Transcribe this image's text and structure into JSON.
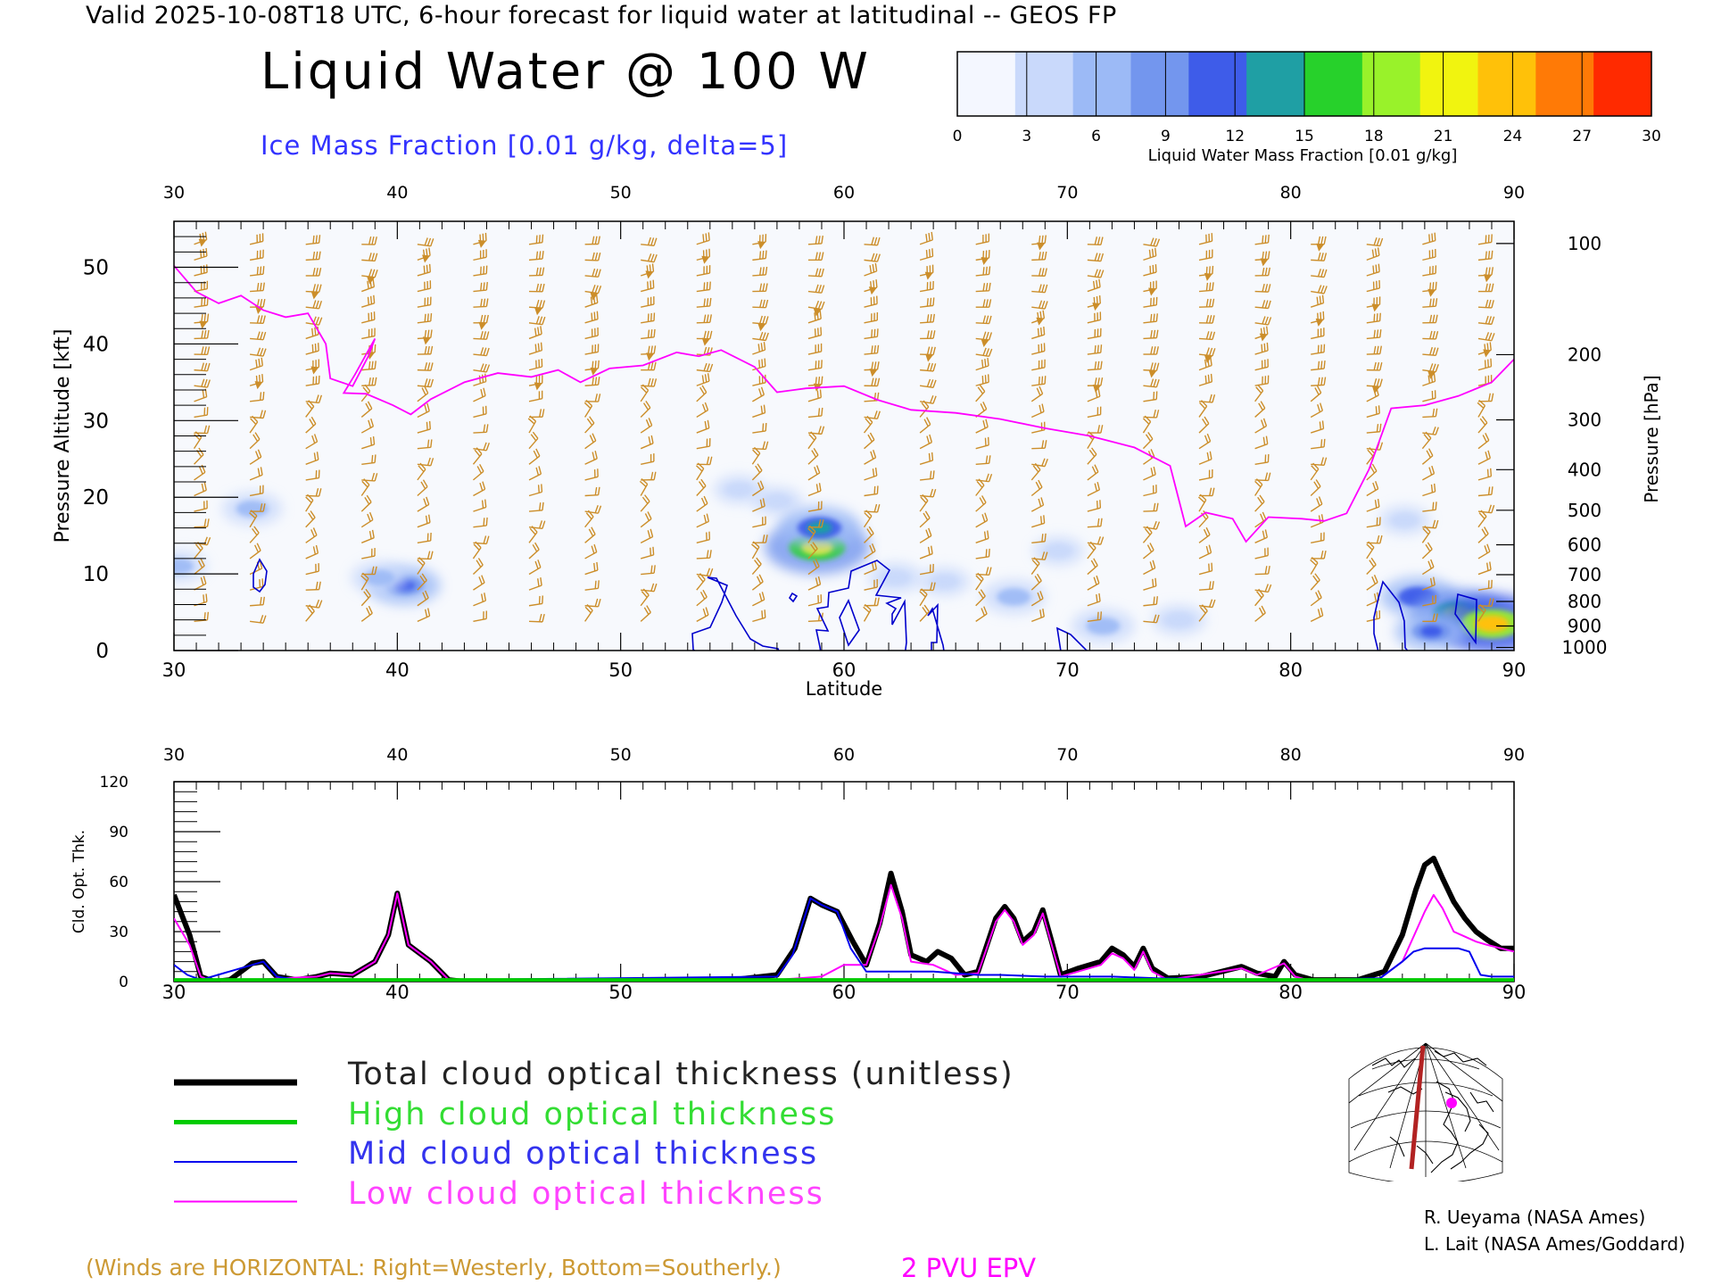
{
  "header": {
    "line": "Valid 2025-10-08T18 UTC, 6-hour forecast for liquid water at latitudinal -- GEOS FP",
    "title": "Liquid Water @ 100 W",
    "subtitle": "Ice Mass Fraction [0.01 g/kg, delta=5]"
  },
  "colorbar": {
    "label": "Liquid Water Mass Fraction [0.01 g/kg]",
    "ticks": [
      "0",
      "3",
      "6",
      "9",
      "12",
      "15",
      "18",
      "21",
      "24",
      "27",
      "30"
    ],
    "colors": [
      "#f4f7ff",
      "#c9d9fb",
      "#9cbaf6",
      "#7396ee",
      "#3e5ce9",
      "#1f9fa4",
      "#27d12b",
      "#99f22a",
      "#f1f40f",
      "#ffc109",
      "#ff7a06",
      "#ff2a00"
    ]
  },
  "chart_data": [
    {
      "type": "heatmap",
      "xlabel": "Latitude",
      "ylabel_left": "Pressure Altitude [kft]",
      "ylabel_right": "Pressure [hPa]",
      "xlim": [
        30,
        90
      ],
      "ylim": [
        0,
        56
      ],
      "x_ticks": [
        "30",
        "40",
        "50",
        "60",
        "70",
        "80",
        "90"
      ],
      "y_ticks": [
        "0",
        "10",
        "20",
        "30",
        "40",
        "50"
      ],
      "pressure_ticks": [
        {
          "label": "100",
          "kft": 53.1
        },
        {
          "label": "200",
          "kft": 38.6
        },
        {
          "label": "300",
          "kft": 30.1
        },
        {
          "label": "400",
          "kft": 23.6
        },
        {
          "label": "500",
          "kft": 18.3
        },
        {
          "label": "600",
          "kft": 13.8
        },
        {
          "label": "700",
          "kft": 9.9
        },
        {
          "label": "800",
          "kft": 6.4
        },
        {
          "label": "900",
          "kft": 3.2
        },
        {
          "label": "1000",
          "kft": 0.4
        }
      ],
      "liquid_water_blobs": [
        {
          "lat": 30.2,
          "kft": 11,
          "value": 6
        },
        {
          "lat": 33.5,
          "kft": 18.5,
          "value": 7
        },
        {
          "lat": 40.3,
          "kft": 8.5,
          "value": 11
        },
        {
          "lat": 39.2,
          "kft": 9.5,
          "value": 6
        },
        {
          "lat": 55.3,
          "kft": 21,
          "value": 4
        },
        {
          "lat": 57,
          "kft": 19.5,
          "value": 4
        },
        {
          "lat": 58.8,
          "kft": 13.5,
          "value": 21
        },
        {
          "lat": 58.9,
          "kft": 16,
          "value": 14
        },
        {
          "lat": 62.3,
          "kft": 9.5,
          "value": 5
        },
        {
          "lat": 64.5,
          "kft": 9,
          "value": 4
        },
        {
          "lat": 67.6,
          "kft": 7,
          "value": 8
        },
        {
          "lat": 71.6,
          "kft": 3.2,
          "value": 8
        },
        {
          "lat": 69.6,
          "kft": 13,
          "value": 4
        },
        {
          "lat": 75,
          "kft": 4,
          "value": 5
        },
        {
          "lat": 85.1,
          "kft": 17,
          "value": 4
        },
        {
          "lat": 85.7,
          "kft": 7,
          "value": 12
        },
        {
          "lat": 87.5,
          "kft": 4.8,
          "value": 18
        },
        {
          "lat": 89,
          "kft": 3.5,
          "value": 24
        },
        {
          "lat": 86.3,
          "kft": 2.5,
          "value": 11
        }
      ],
      "tropopause_2pvu_kft": [
        [
          30,
          50.2
        ],
        [
          31,
          46.8
        ],
        [
          32,
          45.3
        ],
        [
          33,
          46.3
        ],
        [
          34,
          44.4
        ],
        [
          35,
          43.5
        ],
        [
          36,
          44.0
        ],
        [
          36.8,
          40
        ],
        [
          37,
          35.5
        ],
        [
          38,
          34.5
        ],
        [
          38.7,
          38.4
        ],
        [
          39,
          40.7
        ],
        [
          38.1,
          36
        ],
        [
          37.6,
          33.6
        ],
        [
          38.6,
          33.5
        ],
        [
          39.8,
          32.0
        ],
        [
          40.6,
          30.8
        ],
        [
          41.5,
          32.8
        ],
        [
          43,
          35
        ],
        [
          44.5,
          36.2
        ],
        [
          46,
          35.7
        ],
        [
          47.2,
          36.6
        ],
        [
          48.2,
          35.0
        ],
        [
          49.5,
          36.8
        ],
        [
          51,
          37.2
        ],
        [
          52.5,
          38.9
        ],
        [
          53.5,
          38.4
        ],
        [
          54.5,
          39.2
        ],
        [
          56,
          37
        ],
        [
          57,
          33.7
        ],
        [
          58.3,
          34.2
        ],
        [
          60,
          34.5
        ],
        [
          61.5,
          32.7
        ],
        [
          63,
          31.4
        ],
        [
          65,
          31.0
        ],
        [
          67,
          30.2
        ],
        [
          69,
          29.0
        ],
        [
          71,
          28.0
        ],
        [
          73,
          26.5
        ],
        [
          74.6,
          24.1
        ],
        [
          75.3,
          16.2
        ],
        [
          76.2,
          18.0
        ],
        [
          77.4,
          17.2
        ],
        [
          78,
          14.2
        ],
        [
          79,
          17.4
        ],
        [
          80.5,
          17.2
        ],
        [
          81.5,
          16.9
        ],
        [
          82.5,
          17.9
        ],
        [
          83.5,
          23.6
        ],
        [
          84.5,
          31.6
        ],
        [
          86,
          32.0
        ],
        [
          87.5,
          33.2
        ],
        [
          89,
          35.0
        ],
        [
          90,
          38.0
        ]
      ]
    },
    {
      "type": "line",
      "xlabel": "Latitude",
      "ylabel": "Cld. Opt. Thk.",
      "xlim": [
        30,
        90
      ],
      "ylim": [
        0,
        120
      ],
      "x_ticks": [
        "30",
        "40",
        "50",
        "60",
        "70",
        "80",
        "90"
      ],
      "y_ticks": [
        "0",
        "30",
        "60",
        "90",
        "120"
      ],
      "series": [
        {
          "name": "Total cloud optical thickness (unitless)",
          "color": "#000000",
          "width": 6,
          "points": [
            [
              30,
              52
            ],
            [
              30.7,
              28
            ],
            [
              31.2,
              3
            ],
            [
              31.8,
              0
            ],
            [
              32.5,
              1
            ],
            [
              33.5,
              11
            ],
            [
              34,
              12
            ],
            [
              34.6,
              3
            ],
            [
              35.5,
              1
            ],
            [
              36.4,
              3
            ],
            [
              37,
              5
            ],
            [
              38,
              4
            ],
            [
              39,
              12
            ],
            [
              39.6,
              28
            ],
            [
              40,
              53
            ],
            [
              40.5,
              22
            ],
            [
              41.5,
              12
            ],
            [
              42.3,
              1
            ],
            [
              43,
              0
            ],
            [
              52,
              0
            ],
            [
              55,
              1
            ],
            [
              57,
              4
            ],
            [
              57.8,
              20
            ],
            [
              58.5,
              50
            ],
            [
              59,
              46
            ],
            [
              59.7,
              42
            ],
            [
              60.4,
              24
            ],
            [
              61,
              10
            ],
            [
              61.6,
              35
            ],
            [
              62.1,
              65
            ],
            [
              62.6,
              42
            ],
            [
              63,
              16
            ],
            [
              63.7,
              12
            ],
            [
              64.2,
              18
            ],
            [
              64.8,
              14
            ],
            [
              65.4,
              4
            ],
            [
              66,
              6
            ],
            [
              66.8,
              38
            ],
            [
              67.2,
              45
            ],
            [
              67.6,
              38
            ],
            [
              68,
              24
            ],
            [
              68.5,
              30
            ],
            [
              68.9,
              43
            ],
            [
              69.3,
              24
            ],
            [
              69.7,
              4
            ],
            [
              70.5,
              8
            ],
            [
              71.5,
              12
            ],
            [
              72,
              20
            ],
            [
              72.5,
              16
            ],
            [
              73,
              9
            ],
            [
              73.4,
              20
            ],
            [
              73.8,
              8
            ],
            [
              74.5,
              2
            ],
            [
              76,
              3
            ],
            [
              77.8,
              9
            ],
            [
              78.5,
              5
            ],
            [
              79.3,
              3
            ],
            [
              79.7,
              12
            ],
            [
              80.2,
              4
            ],
            [
              81,
              1
            ],
            [
              83,
              1
            ],
            [
              84.2,
              6
            ],
            [
              85,
              28
            ],
            [
              85.6,
              55
            ],
            [
              86,
              70
            ],
            [
              86.4,
              74
            ],
            [
              86.8,
              62
            ],
            [
              87.3,
              48
            ],
            [
              87.8,
              38
            ],
            [
              88.3,
              30
            ],
            [
              88.8,
              25
            ],
            [
              89.4,
              20
            ],
            [
              90,
              20
            ]
          ]
        },
        {
          "name": "High cloud optical thickness",
          "color": "#00cc00",
          "width": 4,
          "points": [
            [
              30,
              1
            ],
            [
              60,
              1
            ],
            [
              90,
              1
            ]
          ]
        },
        {
          "name": "Mid cloud optical thickness",
          "color": "#0000ee",
          "width": 2,
          "points": [
            [
              30,
              10
            ],
            [
              30.6,
              4
            ],
            [
              31.2,
              1
            ],
            [
              33.5,
              10
            ],
            [
              34,
              12
            ],
            [
              34.6,
              3
            ],
            [
              35.5,
              1
            ],
            [
              42,
              1
            ],
            [
              57,
              3
            ],
            [
              57.7,
              16
            ],
            [
              58.5,
              50
            ],
            [
              59,
              46
            ],
            [
              59.7,
              42
            ],
            [
              60.3,
              20
            ],
            [
              61,
              6
            ],
            [
              62,
              6
            ],
            [
              64,
              6
            ],
            [
              66,
              4
            ],
            [
              67,
              4
            ],
            [
              69,
              3
            ],
            [
              70.5,
              3
            ],
            [
              72,
              3
            ],
            [
              74,
              2
            ],
            [
              80,
              1
            ],
            [
              84,
              2
            ],
            [
              85,
              12
            ],
            [
              85.5,
              18
            ],
            [
              86,
              20
            ],
            [
              87,
              20
            ],
            [
              87.5,
              20
            ],
            [
              88,
              18
            ],
            [
              88.5,
              4
            ],
            [
              89,
              3
            ],
            [
              90,
              3
            ]
          ]
        },
        {
          "name": "Low cloud optical thickness",
          "color": "#ff00ff",
          "width": 2,
          "points": [
            [
              30,
              38
            ],
            [
              30.7,
              22
            ],
            [
              31.2,
              3
            ],
            [
              31.8,
              0
            ],
            [
              36.4,
              3
            ],
            [
              37,
              5
            ],
            [
              38,
              4
            ],
            [
              39,
              12
            ],
            [
              39.6,
              28
            ],
            [
              40,
              53
            ],
            [
              40.5,
              22
            ],
            [
              41.5,
              12
            ],
            [
              42.3,
              1
            ],
            [
              52,
              0
            ],
            [
              57,
              1
            ],
            [
              59,
              3
            ],
            [
              60,
              10
            ],
            [
              61,
              10
            ],
            [
              61.6,
              33
            ],
            [
              62.1,
              58
            ],
            [
              62.6,
              38
            ],
            [
              63,
              12
            ],
            [
              64,
              10
            ],
            [
              65,
              4
            ],
            [
              66,
              5
            ],
            [
              66.8,
              36
            ],
            [
              67.2,
              43
            ],
            [
              67.6,
              36
            ],
            [
              68,
              22
            ],
            [
              68.5,
              28
            ],
            [
              68.9,
              41
            ],
            [
              69.3,
              22
            ],
            [
              69.7,
              3
            ],
            [
              71.5,
              10
            ],
            [
              72,
              17
            ],
            [
              72.5,
              14
            ],
            [
              73,
              7
            ],
            [
              73.4,
              18
            ],
            [
              73.8,
              6
            ],
            [
              74.5,
              1
            ],
            [
              77.8,
              8
            ],
            [
              78.5,
              4
            ],
            [
              79.7,
              11
            ],
            [
              80.2,
              3
            ],
            [
              81,
              0
            ],
            [
              84,
              2
            ],
            [
              85,
              12
            ],
            [
              85.6,
              30
            ],
            [
              86,
              42
            ],
            [
              86.4,
              52
            ],
            [
              86.8,
              44
            ],
            [
              87.3,
              30
            ],
            [
              87.8,
              27
            ],
            [
              88.3,
              24
            ],
            [
              88.8,
              22
            ],
            [
              89.4,
              20
            ],
            [
              90,
              18
            ]
          ]
        }
      ]
    }
  ],
  "legend": {
    "items": [
      {
        "label": "Total cloud optical thickness (unitless)",
        "color": "#000000",
        "width": 7
      },
      {
        "label": "High cloud optical thickness",
        "color": "#00cc00",
        "width": 5
      },
      {
        "label": "Mid cloud optical thickness",
        "color": "#0000ee",
        "width": 2
      },
      {
        "label": "Low cloud optical thickness",
        "color": "#ff00ff",
        "width": 2
      }
    ]
  },
  "notes": {
    "winds": "(Winds are HORIZONTAL: Right=Westerly, Bottom=Southerly.)",
    "epv": "2 PVU EPV"
  },
  "credits": {
    "line1": "R. Ueyama (NASA Ames)",
    "line2": "L. Lait (NASA Ames/Goddard)"
  },
  "colors": {
    "wind_barb": "#cc8e2a",
    "ice_contour": "#0000cc",
    "tropopause": "#ff00ff",
    "terrain": "#bdbdbd",
    "map_track": "#b22222",
    "map_marker": "#ff00ff"
  }
}
